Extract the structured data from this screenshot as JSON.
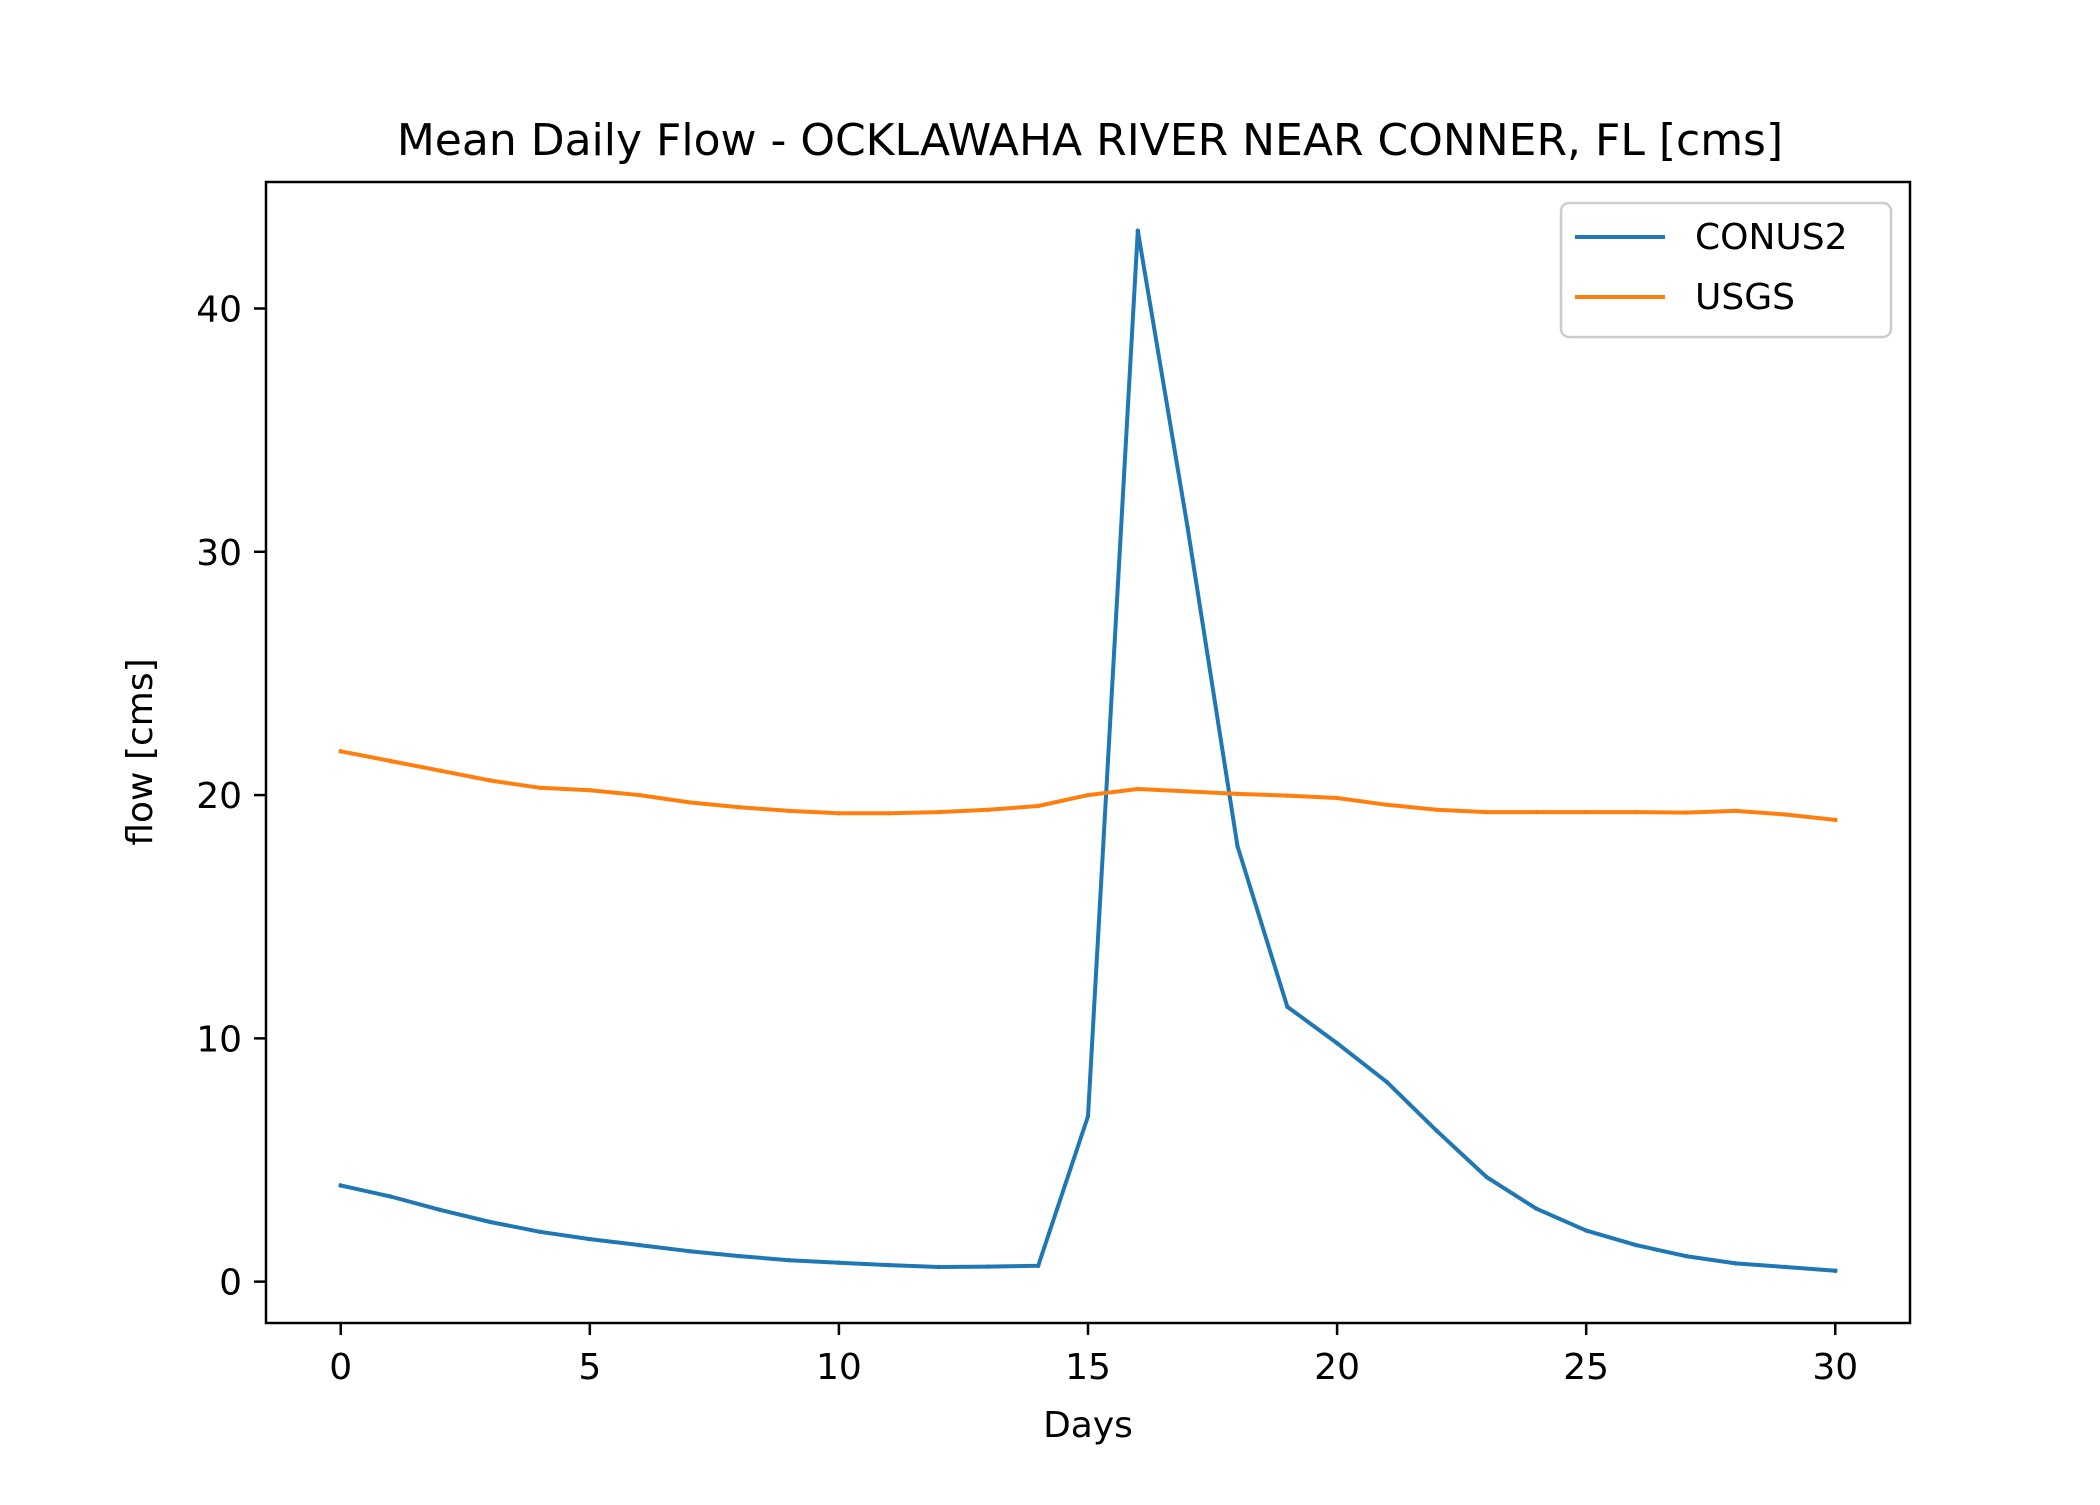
{
  "chart_data": {
    "type": "line",
    "title": "Mean Daily Flow - OCKLAWAHA RIVER NEAR CONNER, FL [cms]",
    "xlabel": "Days",
    "ylabel": "flow [cms]",
    "xlim": [
      -1.5,
      31.5
    ],
    "ylim": [
      -1.7,
      45.2
    ],
    "xticks": [
      0,
      5,
      10,
      15,
      20,
      25,
      30
    ],
    "yticks": [
      0,
      10,
      20,
      30,
      40
    ],
    "grid": false,
    "legend_position": "top-right",
    "x": [
      0,
      1,
      2,
      3,
      4,
      5,
      6,
      7,
      8,
      9,
      10,
      11,
      12,
      13,
      14,
      15,
      16,
      17,
      18,
      19,
      20,
      21,
      22,
      23,
      24,
      25,
      26,
      27,
      28,
      29,
      30
    ],
    "series": [
      {
        "name": "CONUS2",
        "color": "#1f77b4",
        "values": [
          3.95,
          3.5,
          2.95,
          2.45,
          2.05,
          1.75,
          1.5,
          1.25,
          1.05,
          0.88,
          0.78,
          0.68,
          0.6,
          0.62,
          0.65,
          6.8,
          43.2,
          31.0,
          17.9,
          11.3,
          9.8,
          8.2,
          6.2,
          4.3,
          3.0,
          2.1,
          1.5,
          1.05,
          0.75,
          0.6,
          0.45
        ]
      },
      {
        "name": "USGS",
        "color": "#ff7f0e",
        "values": [
          21.8,
          21.4,
          21.0,
          20.6,
          20.3,
          20.2,
          20.0,
          19.7,
          19.5,
          19.35,
          19.25,
          19.25,
          19.3,
          19.4,
          19.55,
          20.0,
          20.25,
          20.15,
          20.05,
          19.98,
          19.88,
          19.6,
          19.4,
          19.3,
          19.3,
          19.3,
          19.3,
          19.28,
          19.35,
          19.2,
          18.98
        ]
      }
    ]
  }
}
